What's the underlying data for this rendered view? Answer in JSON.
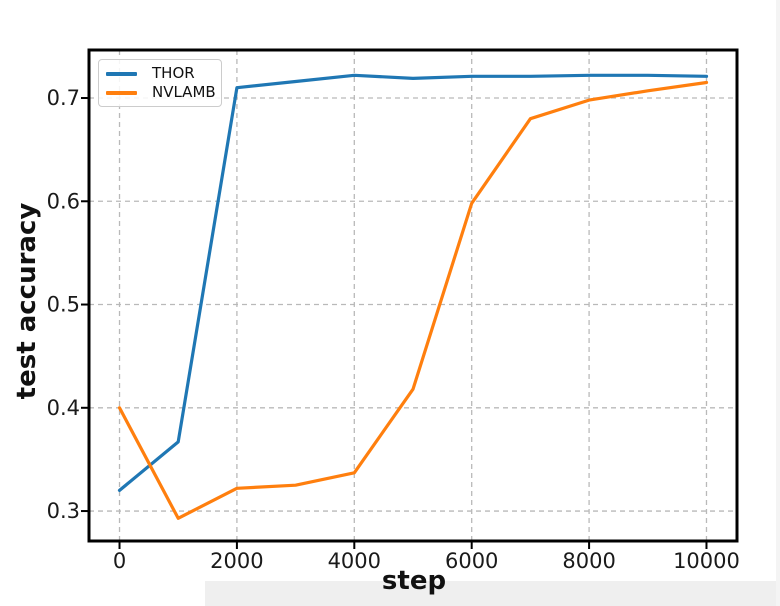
{
  "chart_data": {
    "type": "line",
    "title": "",
    "xlabel": "step",
    "ylabel": "test accuracy",
    "x": [
      0,
      1000,
      2000,
      3000,
      4000,
      5000,
      6000,
      7000,
      8000,
      9000,
      10000
    ],
    "series": [
      {
        "name": "THOR",
        "color": "#1f77b4",
        "values": [
          0.32,
          0.367,
          0.71,
          0.716,
          0.722,
          0.719,
          0.721,
          0.721,
          0.722,
          0.722,
          0.721
        ]
      },
      {
        "name": "NVLAMB",
        "color": "#ff7f0e",
        "values": [
          0.4,
          0.293,
          0.322,
          0.325,
          0.337,
          0.418,
          0.598,
          0.68,
          0.698,
          0.707,
          0.715
        ]
      }
    ],
    "xlim": [
      -520,
      10520
    ],
    "ylim": [
      0.271,
      0.7465
    ],
    "xticks": {
      "values": [
        0,
        2000,
        4000,
        6000,
        8000,
        10000
      ],
      "labels": [
        "0",
        "2000",
        "4000",
        "6000",
        "8000",
        "10000"
      ]
    },
    "yticks": {
      "values": [
        0.3,
        0.4,
        0.5,
        0.6,
        0.7
      ],
      "labels": [
        "0.3",
        "0.4",
        "0.5",
        "0.6",
        "0.7"
      ]
    },
    "grid": true,
    "grid_style": "dashed",
    "grid_color": "#b9b9b9",
    "spine_color": "#000000",
    "tick_label_color": "#1a1a1a",
    "background": "#ffffff",
    "legend": {
      "position": "upper left",
      "entries": [
        "THOR",
        "NVLAMB"
      ]
    }
  }
}
